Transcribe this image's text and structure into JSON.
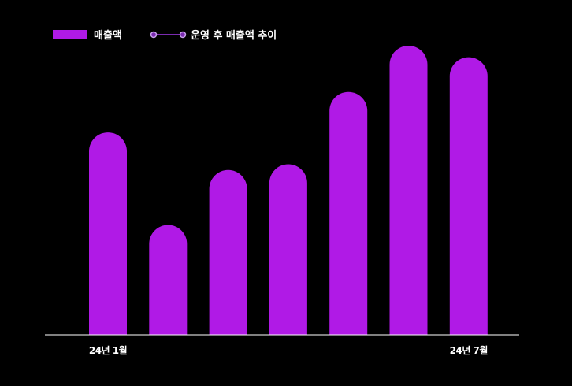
{
  "chart_data": {
    "type": "bar",
    "title": "",
    "xlabel": "",
    "ylabel": "",
    "categories": [
      "24년 1월",
      "",
      "",
      "",
      "",
      "",
      "24년 7월"
    ],
    "series": [
      {
        "name": "매출액",
        "values": [
          70,
          38,
          57,
          59,
          84,
          100,
          96
        ]
      }
    ],
    "line_series_legend": "운영 후 매출액 추이",
    "ylim": [
      0,
      100
    ],
    "y_axis_visible": false,
    "grid": false,
    "legend_position": "top-left",
    "bar_style": "rounded-top",
    "colors": {
      "bar": "#b01ae6",
      "line": "#7a2bb0",
      "line_marker": "#a35ad6",
      "background": "#000000",
      "axis": "#ffffff"
    }
  }
}
